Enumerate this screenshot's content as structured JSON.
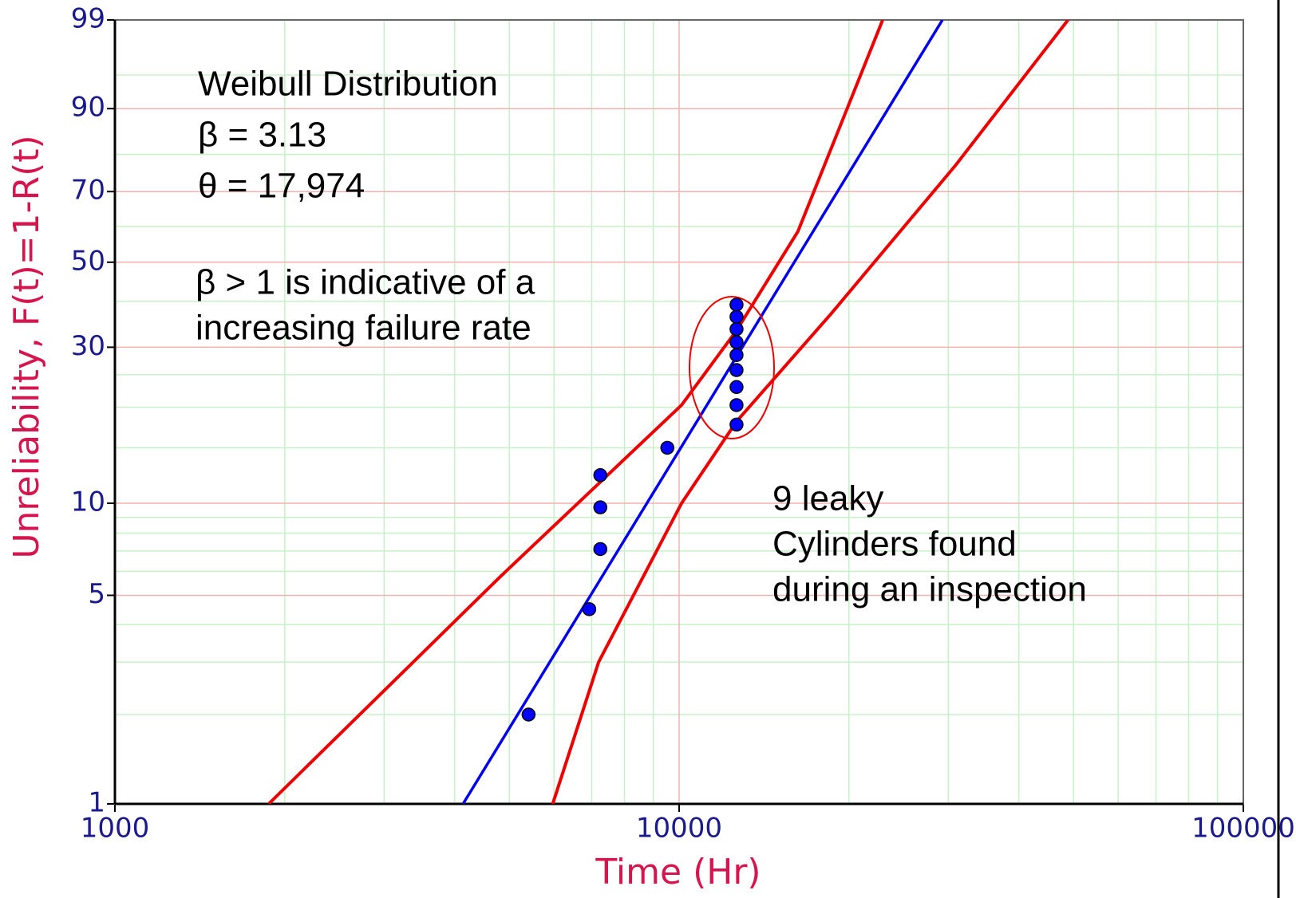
{
  "chart_data": {
    "type": "weibull_probability",
    "xlabel": "Time (Hr)",
    "ylabel": "Unreliability, F(t)=1-R(t)",
    "xscale": "log",
    "yscale": "weibull",
    "xlim": [
      1000,
      100000
    ],
    "ylim": [
      1,
      99
    ],
    "xticks": [
      1000,
      10000,
      100000
    ],
    "yticks": [
      1,
      5,
      10,
      30,
      50,
      70,
      90,
      99
    ],
    "minor_xticks": [
      2000,
      3000,
      4000,
      5000,
      6000,
      7000,
      8000,
      9000,
      20000,
      30000,
      40000,
      50000,
      60000,
      70000,
      80000,
      90000
    ],
    "minor_yticks": [
      2,
      3,
      4,
      6,
      7,
      8,
      9,
      15,
      20,
      25,
      40,
      60,
      80,
      95
    ],
    "points": {
      "name": "Failures",
      "color": "#0000ff",
      "x": [
        5410,
        6930,
        7250,
        7250,
        7250,
        9530,
        12640,
        12640,
        12640,
        12640,
        12640,
        12640,
        12640,
        12640,
        12640
      ],
      "y": [
        2.0,
        4.5,
        7.1,
        9.7,
        12.3,
        15.0,
        17.7,
        20.3,
        23.0,
        25.8,
        28.5,
        31.0,
        33.7,
        36.4,
        39.2
      ]
    },
    "fit_line": {
      "color": "#0000ee",
      "x": [
        4140,
        29290
      ],
      "y": [
        1,
        99
      ]
    },
    "bounds": [
      {
        "color": "#ee0000",
        "x": [
          1873,
          4790,
          10100,
          12640,
          16240,
          22950
        ],
        "y": [
          1,
          5.7,
          20.3,
          33.4,
          58.6,
          99
        ]
      },
      {
        "color": "#ee0000",
        "x": [
          5970,
          7200,
          10100,
          12640,
          18600,
          30900,
          48900
        ],
        "y": [
          1,
          3.0,
          10,
          18.1,
          37.1,
          77.2,
          99
        ]
      }
    ],
    "annotations": [
      {
        "lines": [
          "Weibull Distribution",
          "β = 3.13",
          "θ = 17,974"
        ]
      },
      {
        "lines": [
          "β > 1 is indicative of a",
          "increasing failure rate"
        ]
      },
      {
        "lines": [
          "9 leaky",
          "Cylinders found",
          "during an inspection"
        ]
      }
    ]
  }
}
